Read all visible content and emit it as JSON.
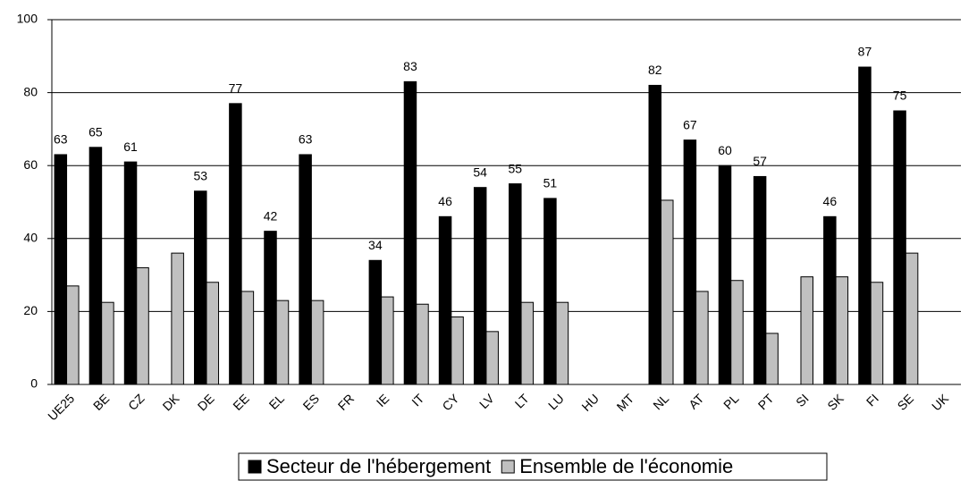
{
  "chart_data": {
    "type": "bar",
    "categories": [
      "UE25",
      "BE",
      "CZ",
      "DK",
      "DE",
      "EE",
      "EL",
      "ES",
      "FR",
      "IE",
      "IT",
      "CY",
      "LV",
      "LT",
      "LU",
      "HU",
      "MT",
      "NL",
      "AT",
      "PL",
      "PT",
      "SI",
      "SK",
      "FI",
      "SE",
      "UK"
    ],
    "series": [
      {
        "name": "Secteur de l'hébergement",
        "color": "#000000",
        "values": [
          63,
          65,
          61,
          null,
          53,
          77,
          42,
          63,
          null,
          34,
          83,
          46,
          54,
          55,
          51,
          null,
          null,
          82,
          67,
          60,
          57,
          null,
          46,
          87,
          75,
          null
        ]
      },
      {
        "name": "Ensemble de l'économie",
        "color": "#c0c0c0",
        "values": [
          27,
          22.5,
          32,
          36,
          28,
          25.5,
          23,
          23,
          null,
          24,
          22,
          18.5,
          14.5,
          22.5,
          22.5,
          null,
          null,
          50.5,
          25.5,
          28.5,
          14,
          29.5,
          29.5,
          28,
          36,
          null
        ]
      }
    ],
    "ylim": [
      0,
      100
    ],
    "yticks": [
      0,
      20,
      40,
      60,
      80,
      100
    ],
    "grid": true,
    "data_labels_series": [
      0
    ],
    "legend": "bottom"
  }
}
